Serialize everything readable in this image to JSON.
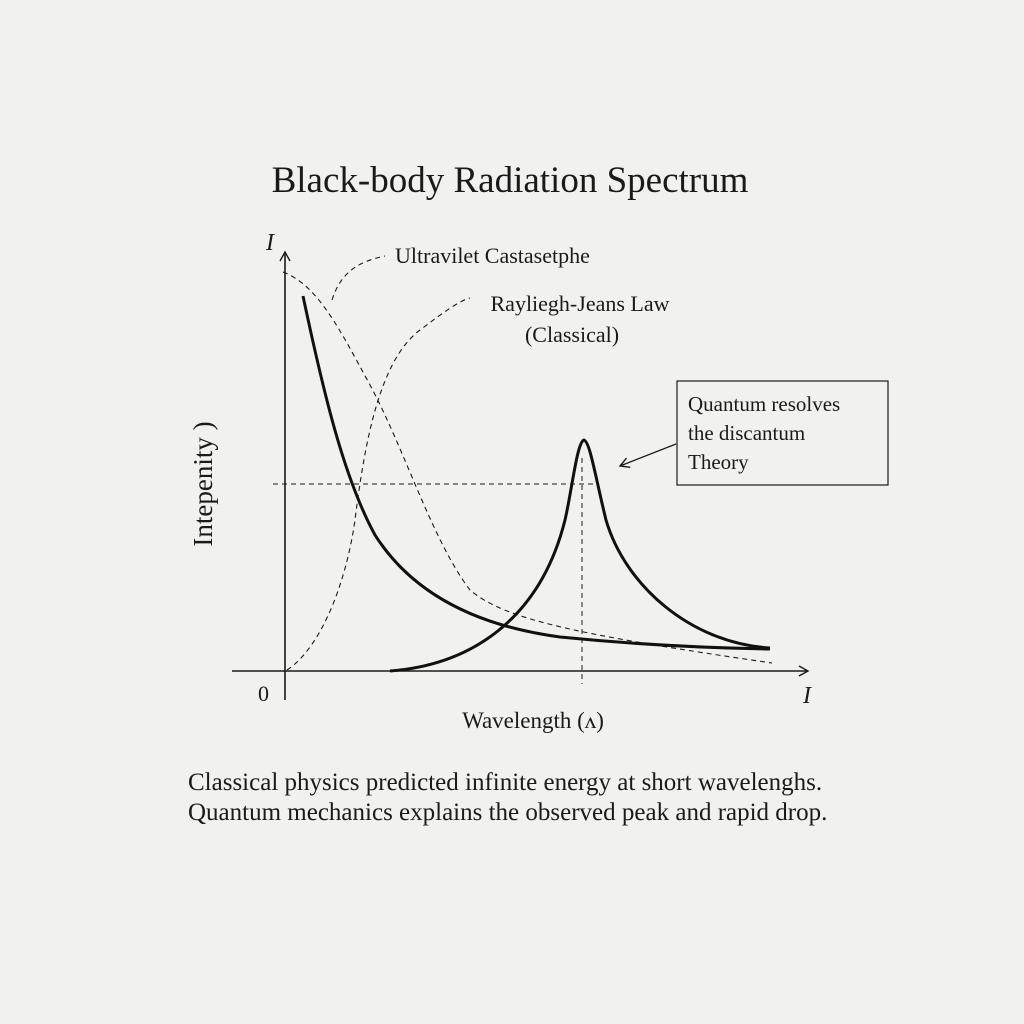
{
  "title": "Black-body Radiation Spectrum",
  "axes": {
    "y_letter": "I",
    "y_label": "Intepenity )",
    "x_label": "Wavelength (ʌ)",
    "x_end_letter": "I",
    "origin": "0"
  },
  "annotations": {
    "uv_label": "Ultravilet Castasetphe",
    "rj_line1": "Rayliegh-Jeans Law",
    "rj_line2": "(Classical)",
    "box_line1": "Quantum resolves",
    "box_line2": "the discantum",
    "box_line3": "Theory"
  },
  "caption": "Classical physics predicted infinite energy at short wavelenghs. Quantum mechanics explains the observed peak and rapid drop.",
  "colors": {
    "ink": "#1a1a1a",
    "paper": "#f1f1ef"
  }
}
